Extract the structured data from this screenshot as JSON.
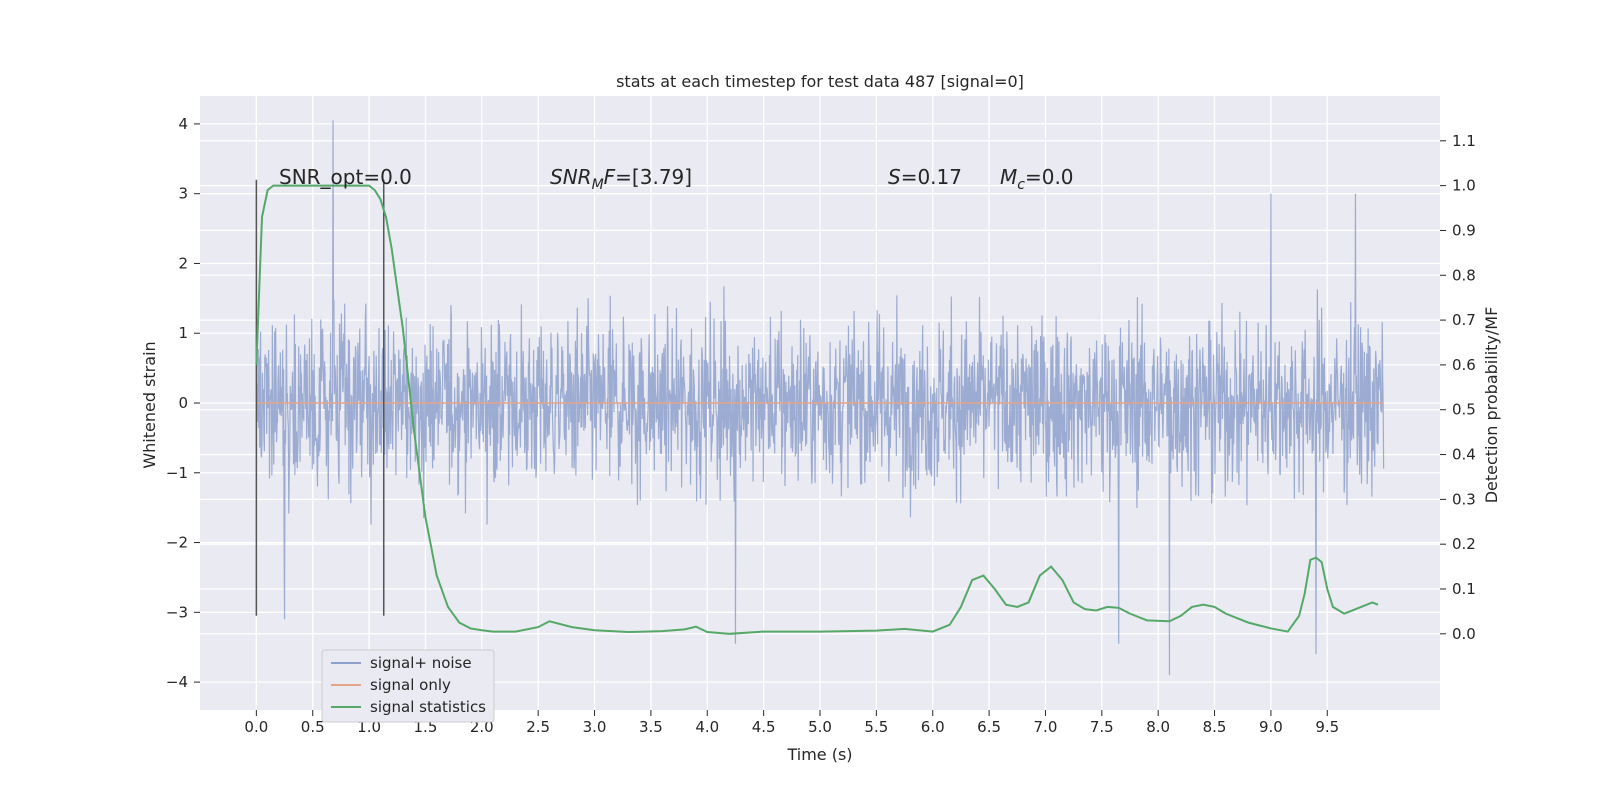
{
  "chart_data": {
    "type": "line",
    "title": "stats at each timestep for test data 487 [signal=0]",
    "xlabel": "Time (s)",
    "ylabel": "Whitened strain",
    "y2label": "Detection probability/MF",
    "xlim": [
      -0.5,
      10.5
    ],
    "ylim": [
      -4.4,
      4.4
    ],
    "y2lim": [
      -0.17,
      1.2
    ],
    "xticks": [
      "0.0",
      "0.5",
      "1.0",
      "1.5",
      "2.0",
      "2.5",
      "3.0",
      "3.5",
      "4.0",
      "4.5",
      "5.0",
      "5.5",
      "6.0",
      "6.5",
      "7.0",
      "7.5",
      "8.0",
      "8.5",
      "9.0",
      "9.5"
    ],
    "yticks": [
      "4",
      "3",
      "2",
      "1",
      "0",
      "−1",
      "−2",
      "−3",
      "−4"
    ],
    "y2ticks": [
      "1.1",
      "1.0",
      "0.9",
      "0.8",
      "0.7",
      "0.6",
      "0.5",
      "0.4",
      "0.3",
      "0.2",
      "0.1",
      "0.0"
    ],
    "grid": true,
    "legend_position": "lower-left",
    "annotations": {
      "snr_opt": "SNR_opt=0.0",
      "snr_mf_prefix": "SNR",
      "snr_mf_sub": "M",
      "snr_mf_suffix": "F=[3.79]",
      "s_var": "S",
      "s_val": "=0.17",
      "mc_var": "M",
      "mc_sub": "c",
      "mc_val": "=0.0"
    },
    "vlines_x": [
      0.0,
      1.13
    ],
    "series": [
      {
        "name": "signal+ noise",
        "color": "#8da0cb",
        "axis": "left",
        "x_range": [
          0.0,
          10.0
        ],
        "envelope": "noise with peaks ~ ±2 to ±4",
        "peaks": [
          {
            "x": 0.68,
            "y": 4.05
          },
          {
            "x": 0.25,
            "y": -3.1
          },
          {
            "x": 4.25,
            "y": -3.45
          },
          {
            "x": 8.1,
            "y": -3.9
          },
          {
            "x": 9.4,
            "y": -3.6
          },
          {
            "x": 7.65,
            "y": -3.45
          },
          {
            "x": 9.0,
            "y": 3.0
          },
          {
            "x": 9.75,
            "y": 3.0
          }
        ]
      },
      {
        "name": "signal only",
        "color": "#e5a488",
        "axis": "left",
        "x": [
          0.0,
          10.0
        ],
        "y": [
          0.0,
          0.0
        ]
      },
      {
        "name": "signal statistics",
        "color": "#55a868",
        "axis": "right",
        "x": [
          0.0,
          0.05,
          0.1,
          0.15,
          0.25,
          0.5,
          0.75,
          1.0,
          1.05,
          1.1,
          1.15,
          1.2,
          1.3,
          1.4,
          1.5,
          1.6,
          1.7,
          1.8,
          1.9,
          2.0,
          2.1,
          2.3,
          2.5,
          2.6,
          2.8,
          3.0,
          3.3,
          3.6,
          3.8,
          3.9,
          4.0,
          4.2,
          4.5,
          5.0,
          5.5,
          5.75,
          6.0,
          6.15,
          6.25,
          6.35,
          6.45,
          6.55,
          6.65,
          6.75,
          6.85,
          6.95,
          7.05,
          7.15,
          7.25,
          7.35,
          7.45,
          7.55,
          7.65,
          7.75,
          7.9,
          8.1,
          8.2,
          8.3,
          8.4,
          8.5,
          8.6,
          8.8,
          9.0,
          9.15,
          9.25,
          9.3,
          9.35,
          9.4,
          9.45,
          9.5,
          9.55,
          9.65,
          9.7,
          9.8,
          9.9,
          9.95
        ],
        "y": [
          0.6,
          0.93,
          0.99,
          1.0,
          1.0,
          1.0,
          1.0,
          1.0,
          0.99,
          0.97,
          0.93,
          0.86,
          0.68,
          0.45,
          0.26,
          0.13,
          0.06,
          0.025,
          0.012,
          0.008,
          0.005,
          0.005,
          0.015,
          0.028,
          0.015,
          0.008,
          0.004,
          0.006,
          0.01,
          0.016,
          0.004,
          0.0,
          0.005,
          0.005,
          0.007,
          0.011,
          0.005,
          0.02,
          0.06,
          0.12,
          0.13,
          0.1,
          0.065,
          0.06,
          0.07,
          0.13,
          0.15,
          0.12,
          0.07,
          0.055,
          0.052,
          0.06,
          0.058,
          0.045,
          0.03,
          0.028,
          0.04,
          0.06,
          0.065,
          0.06,
          0.045,
          0.025,
          0.012,
          0.005,
          0.04,
          0.09,
          0.165,
          0.17,
          0.16,
          0.1,
          0.06,
          0.045,
          0.05,
          0.06,
          0.07,
          0.065
        ]
      }
    ]
  }
}
